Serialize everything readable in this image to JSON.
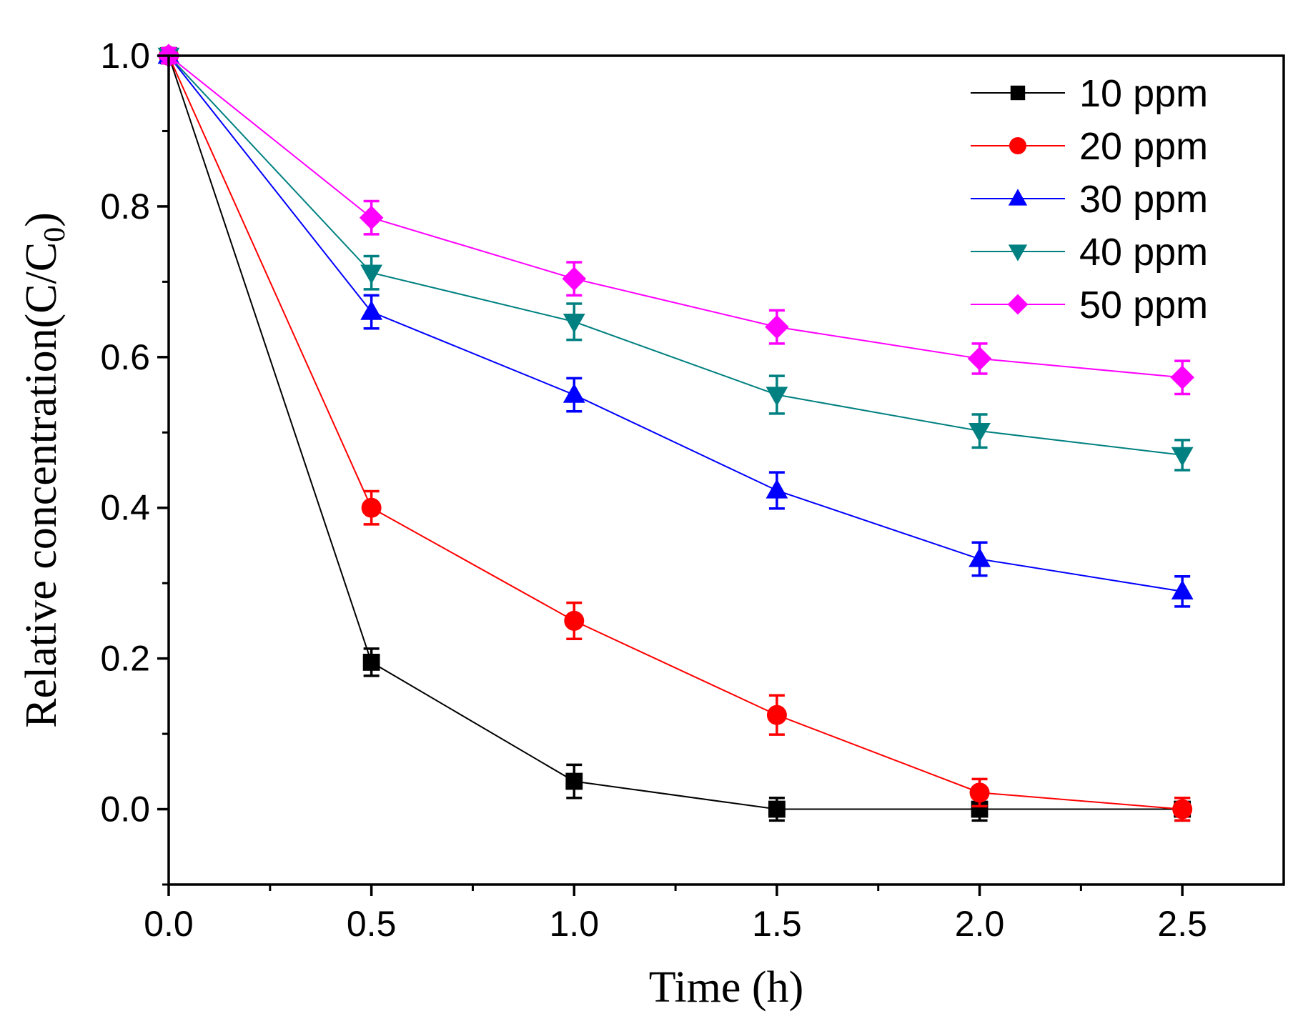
{
  "chart_data": {
    "type": "line",
    "title": "",
    "xlabel": "Time (h)",
    "ylabel": {
      "main": "Relative concentration(C/C",
      "subscript": "0",
      "close": ")"
    },
    "xlim": [
      0,
      2.75
    ],
    "ylim": [
      -0.1,
      1.0
    ],
    "x_ticks": [
      "0.0",
      "0.5",
      "1.0",
      "1.5",
      "2.0",
      "2.5"
    ],
    "y_ticks": [
      "0.0",
      "0.2",
      "0.4",
      "0.6",
      "0.8",
      "1.0"
    ],
    "legend_position": "top-right",
    "x": [
      0,
      0.5,
      1.0,
      1.5,
      2.0,
      2.5
    ],
    "series": [
      {
        "name": "10 ppm",
        "color": "#000000",
        "marker": "square",
        "values": [
          1.0,
          0.195,
          0.037,
          0.0,
          0.0,
          0.0
        ],
        "errors": [
          0.01,
          0.018,
          0.022,
          0.015,
          0.015,
          0.015
        ]
      },
      {
        "name": "20 ppm",
        "color": "#ff0000",
        "marker": "circle",
        "values": [
          1.0,
          0.4,
          0.25,
          0.125,
          0.022,
          0.0
        ],
        "errors": [
          0.01,
          0.022,
          0.024,
          0.026,
          0.018,
          0.015
        ]
      },
      {
        "name": "30 ppm",
        "color": "#0000ff",
        "marker": "triangle-up",
        "values": [
          1.0,
          0.66,
          0.55,
          0.423,
          0.332,
          0.289
        ],
        "errors": [
          0.01,
          0.022,
          0.022,
          0.024,
          0.022,
          0.02
        ]
      },
      {
        "name": "40 ppm",
        "color": "#008080",
        "marker": "triangle-down",
        "values": [
          1.0,
          0.712,
          0.647,
          0.55,
          0.502,
          0.47
        ],
        "errors": [
          0.01,
          0.022,
          0.024,
          0.025,
          0.022,
          0.02
        ]
      },
      {
        "name": "50 ppm",
        "color": "#ff00ff",
        "marker": "diamond",
        "values": [
          1.0,
          0.785,
          0.704,
          0.64,
          0.598,
          0.573
        ],
        "errors": [
          0.01,
          0.022,
          0.022,
          0.022,
          0.02,
          0.022
        ]
      }
    ]
  }
}
